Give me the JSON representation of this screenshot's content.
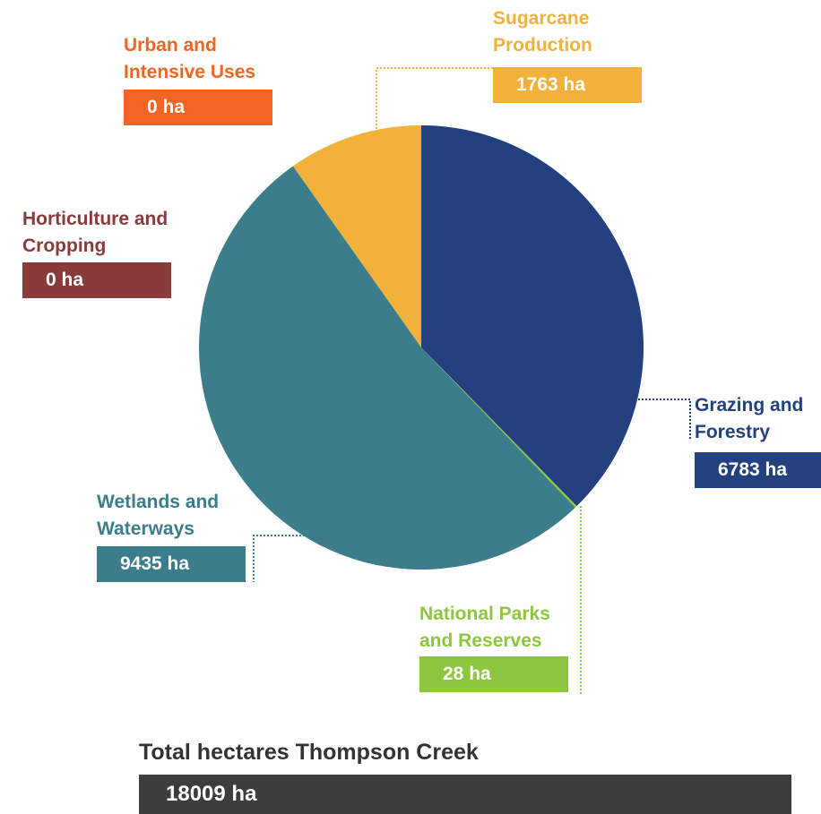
{
  "chart_data": {
    "type": "pie",
    "categories": [
      "Grazing and Forestry",
      "National Parks and Reserves",
      "Wetlands and Waterways",
      "Sugarcane Production",
      "Urban and Intensive Uses",
      "Horticulture and Cropping"
    ],
    "values": [
      6783,
      28,
      9435,
      1763,
      0,
      0
    ],
    "value_labels": [
      "6783 ha",
      "28 ha",
      "9435 ha",
      "1763 ha",
      "0 ha",
      "0 ha"
    ],
    "colors": [
      "#23417f",
      "#8dc63f",
      "#3b7d8a",
      "#f1b13b",
      "#f26522",
      "#8b3a3a"
    ],
    "total_title": "Total hectares Thompson Creek",
    "total_label": "18009 ha"
  }
}
